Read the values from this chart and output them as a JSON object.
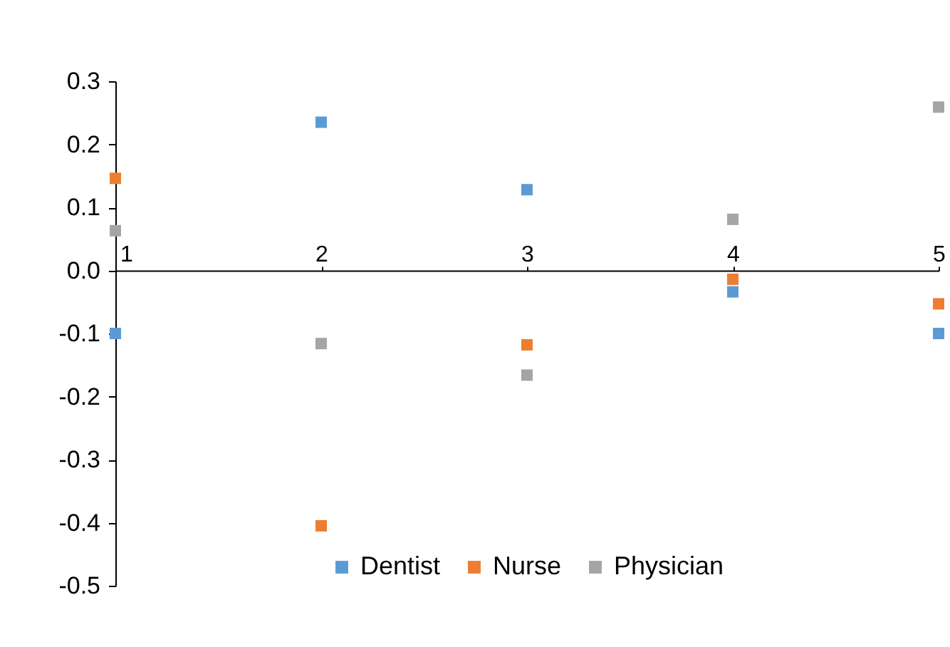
{
  "chart_data": {
    "type": "scatter",
    "x": [
      1,
      2,
      3,
      4,
      5
    ],
    "xlim": [
      1,
      5
    ],
    "xticks": [
      1,
      2,
      3,
      4,
      5
    ],
    "ylim": [
      -0.5,
      0.3
    ],
    "yticks": [
      0.3,
      0.2,
      0.1,
      {
        "value": 0,
        "label": "0.0"
      },
      -0.1,
      -0.2,
      -0.3,
      -0.4,
      -0.5
    ],
    "series": [
      {
        "name": "Dentist",
        "color": "#5b9bd5",
        "values": [
          -0.1,
          0.235,
          0.128,
          -0.034,
          -0.1
        ]
      },
      {
        "name": "Nurse",
        "color": "#ed7d31",
        "values": [
          0.146,
          -0.405,
          -0.118,
          -0.014,
          -0.053
        ]
      },
      {
        "name": "Physician",
        "color": "#a5a5a5",
        "values": [
          0.063,
          -0.116,
          -0.166,
          0.081,
          0.259
        ]
      }
    ],
    "marker": "square",
    "grid": false,
    "legend": "bottom"
  }
}
